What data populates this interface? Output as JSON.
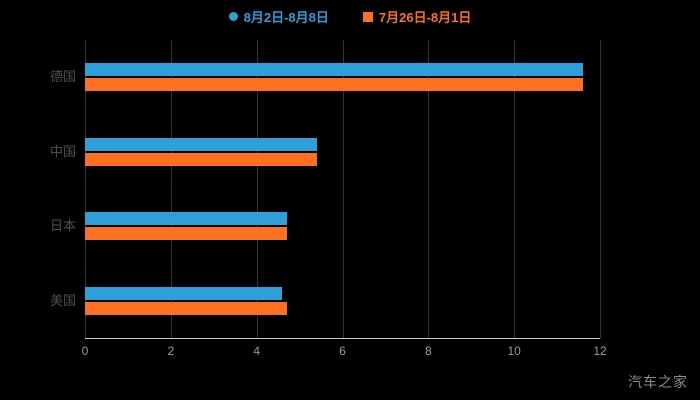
{
  "legend": {
    "items": [
      {
        "label": "8月2日-8月8日",
        "color": "#2e9fd9",
        "marker": "circle"
      },
      {
        "label": "7月26日-8月1日",
        "color": "#fd7021",
        "marker": "square"
      }
    ]
  },
  "watermark": "汽车之家",
  "chart_data": {
    "type": "bar",
    "orientation": "horizontal",
    "title": "",
    "categories": [
      "德国",
      "中国",
      "日本",
      "美国"
    ],
    "series": [
      {
        "name": "8月2日-8月8日",
        "color": "#2e9fd9",
        "values": [
          11.6,
          5.4,
          4.7,
          4.6
        ]
      },
      {
        "name": "7月26日-8月1日",
        "color": "#fd7021",
        "values": [
          11.6,
          5.4,
          4.7,
          4.7
        ]
      }
    ],
    "xlim": [
      0,
      12
    ],
    "xticks": [
      0,
      2,
      4,
      6,
      8,
      10,
      12
    ],
    "grid": true,
    "legend_position": "top",
    "background": "#000000",
    "axis_color": "#c9c9c9"
  }
}
